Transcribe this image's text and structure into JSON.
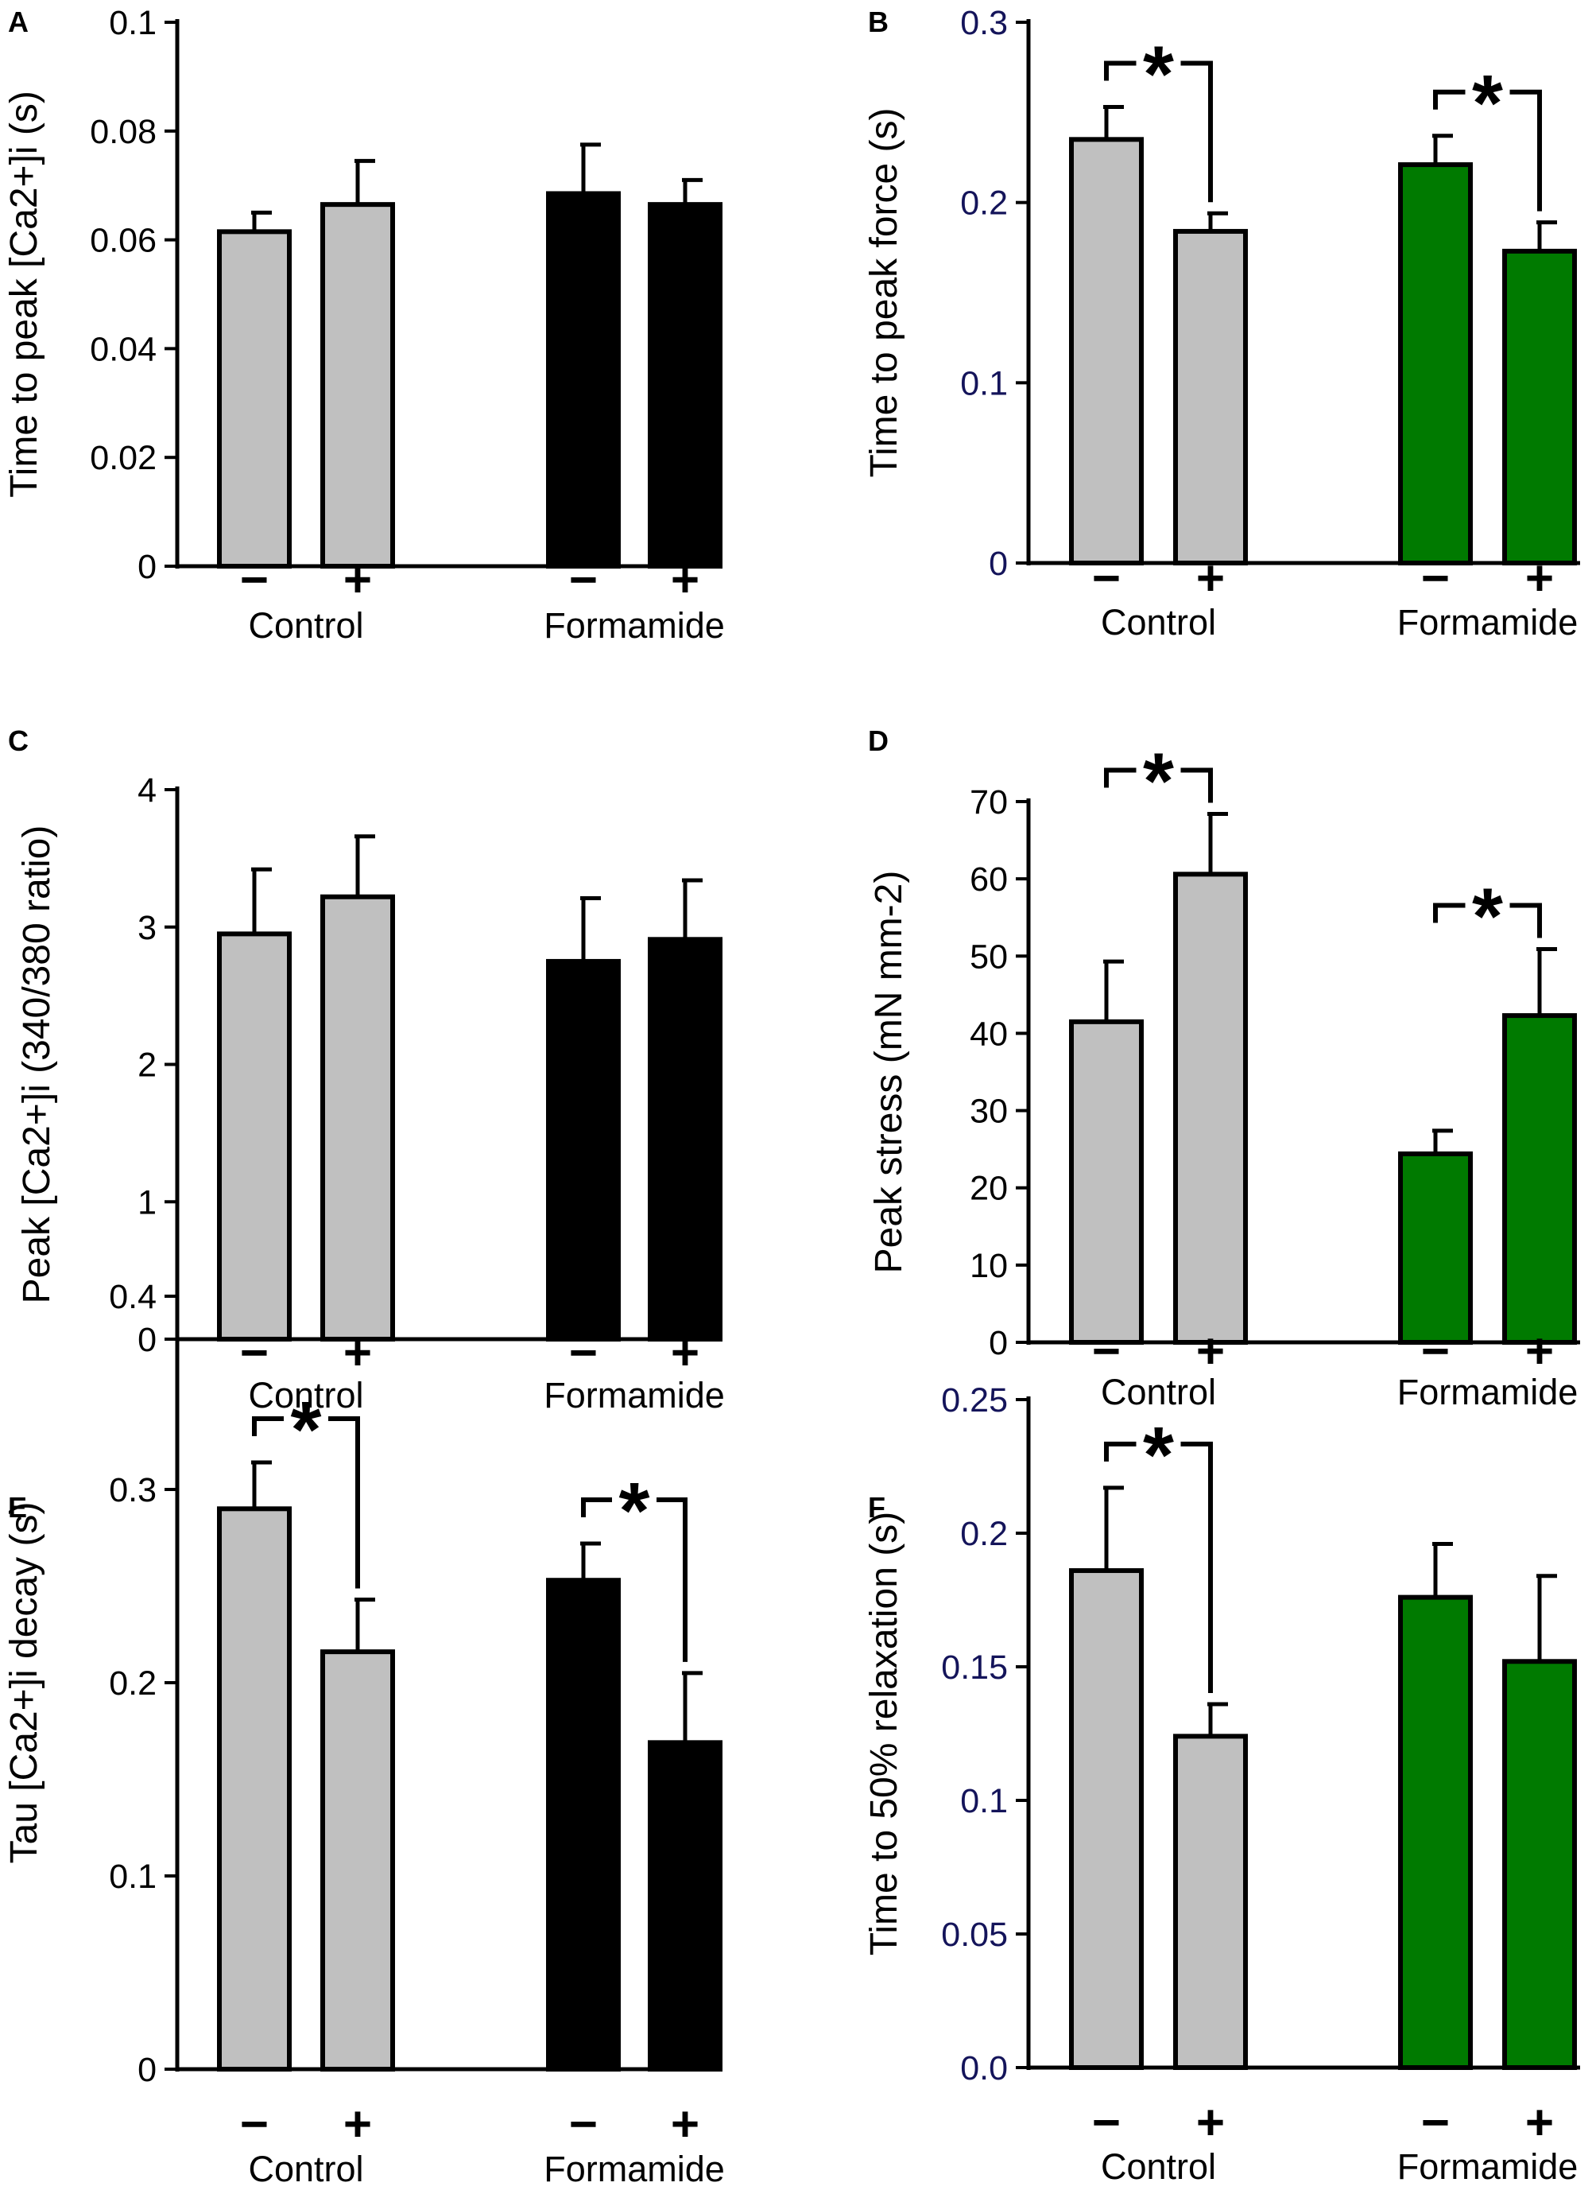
{
  "figure": {
    "panels": [
      "A",
      "B",
      "C",
      "D",
      "E",
      "F"
    ]
  },
  "colors": {
    "control": "#c0c0c0",
    "formamide_ca": "#000000",
    "formamide_force": "#007a00",
    "axis_black": "#000000",
    "axis_navy": "#14145a"
  },
  "chart_data": [
    {
      "panel": "A",
      "type": "bar",
      "ylabel": "Time to peak [Ca2+]i (s)",
      "ylim": [
        0,
        0.1
      ],
      "yticks": [
        "0",
        "0.02",
        "0.04",
        "0.06",
        "0.08",
        "0.1"
      ],
      "tick_color": "black",
      "groups": [
        "Control",
        "Formamide"
      ],
      "conditions": [
        "−",
        "+"
      ],
      "values": [
        0.0615,
        0.0665,
        0.0685,
        0.0665
      ],
      "errors": [
        0.0035,
        0.008,
        0.009,
        0.0045
      ],
      "formamide_color": "black",
      "significance": []
    },
    {
      "panel": "B",
      "type": "bar",
      "ylabel": "Time to peak force (s)",
      "ylim": [
        0,
        0.3
      ],
      "yticks": [
        "0",
        "0.1",
        "0.2",
        "0.3"
      ],
      "tick_color": "navy",
      "groups": [
        "Control",
        "Formamide"
      ],
      "conditions": [
        "−",
        "+"
      ],
      "values": [
        0.235,
        0.184,
        0.221,
        0.173
      ],
      "errors": [
        0.018,
        0.01,
        0.016,
        0.016
      ],
      "formamide_color": "green",
      "significance": [
        {
          "bars": [
            0,
            1
          ],
          "label": "*"
        },
        {
          "bars": [
            2,
            3
          ],
          "label": "*"
        }
      ]
    },
    {
      "panel": "C",
      "type": "bar",
      "ylabel": "Peak [Ca2+]i (340/380 ratio)",
      "ylim": [
        0,
        4
      ],
      "yticks": [
        "0",
        "1",
        "2",
        "3",
        "4"
      ],
      "tick_color": "black",
      "groups": [
        "Control",
        "Formamide"
      ],
      "conditions": [
        "−",
        "+"
      ],
      "values": [
        2.95,
        3.22,
        2.75,
        2.91
      ],
      "errors": [
        0.47,
        0.44,
        0.46,
        0.43
      ],
      "formamide_color": "black",
      "significance": []
    },
    {
      "panel": "D",
      "type": "bar",
      "ylabel": "Peak stress (mN mm-2)",
      "ylim": [
        0,
        70
      ],
      "yticks": [
        "0",
        "10",
        "20",
        "30",
        "40",
        "50",
        "60",
        "70"
      ],
      "tick_color": "black",
      "groups": [
        "Control",
        "Formamide"
      ],
      "conditions": [
        "−",
        "+"
      ],
      "values": [
        41.5,
        60.6,
        24.4,
        42.3
      ],
      "errors": [
        7.8,
        7.8,
        3.0,
        8.6
      ],
      "formamide_color": "green",
      "significance": [
        {
          "bars": [
            0,
            1
          ],
          "label": "*"
        },
        {
          "bars": [
            2,
            3
          ],
          "label": "*"
        }
      ]
    },
    {
      "panel": "E",
      "type": "bar",
      "ylabel": "Tau [Ca2+]i decay (s)",
      "ylim": [
        0,
        0.4
      ],
      "yticks": [
        "0",
        "0.1",
        "0.2",
        "0.3",
        "0.4"
      ],
      "tick_color": "black",
      "groups": [
        "Control",
        "Formamide"
      ],
      "conditions": [
        "−",
        "+"
      ],
      "values": [
        0.29,
        0.216,
        0.253,
        0.169
      ],
      "errors": [
        0.024,
        0.027,
        0.019,
        0.036
      ],
      "formamide_color": "black",
      "significance": [
        {
          "bars": [
            0,
            1
          ],
          "label": "*"
        },
        {
          "bars": [
            2,
            3
          ],
          "label": "*"
        }
      ]
    },
    {
      "panel": "F",
      "type": "bar",
      "ylabel": "Time to 50% relaxation (s)",
      "ylim": [
        0,
        0.25
      ],
      "yticks": [
        "0.0",
        "0.05",
        "0.1",
        "0.15",
        "0.2",
        "0.25"
      ],
      "tick_color": "navy",
      "groups": [
        "Control",
        "Formamide"
      ],
      "conditions": [
        "−",
        "+"
      ],
      "values": [
        0.186,
        0.124,
        0.176,
        0.152
      ],
      "errors": [
        0.031,
        0.012,
        0.02,
        0.032
      ],
      "formamide_color": "green",
      "significance": [
        {
          "bars": [
            0,
            1
          ],
          "label": "*"
        }
      ]
    }
  ]
}
